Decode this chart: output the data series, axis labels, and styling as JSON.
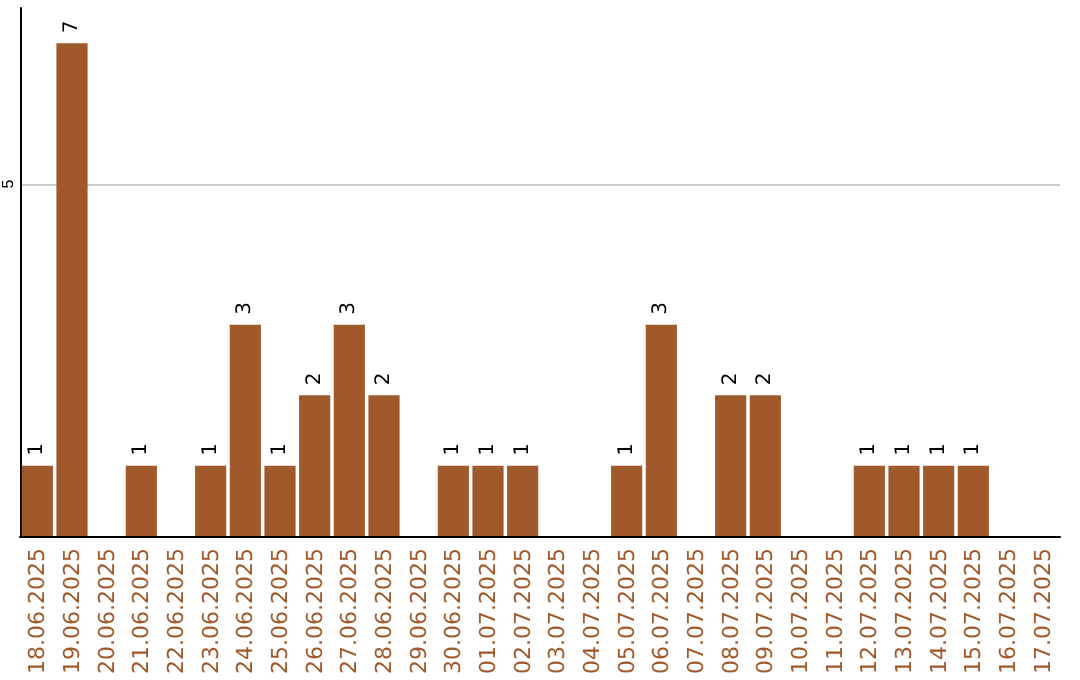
{
  "chart_data": {
    "type": "bar",
    "categories": [
      "18.06.2025",
      "19.06.2025",
      "20.06.2025",
      "21.06.2025",
      "22.06.2025",
      "23.06.2025",
      "24.06.2025",
      "25.06.2025",
      "26.06.2025",
      "27.06.2025",
      "28.06.2025",
      "29.06.2025",
      "30.06.2025",
      "01.07.2025",
      "02.07.2025",
      "03.07.2025",
      "04.07.2025",
      "05.07.2025",
      "06.07.2025",
      "07.07.2025",
      "08.07.2025",
      "09.07.2025",
      "10.07.2025",
      "11.07.2025",
      "12.07.2025",
      "13.07.2025",
      "14.07.2025",
      "15.07.2025",
      "16.07.2025",
      "17.07.2025"
    ],
    "values": [
      1,
      7,
      0,
      1,
      0,
      1,
      3,
      1,
      2,
      3,
      2,
      0,
      1,
      1,
      1,
      0,
      0,
      1,
      3,
      0,
      2,
      2,
      0,
      0,
      1,
      1,
      1,
      1,
      0,
      0
    ],
    "value_labels": [
      "1",
      "7",
      null,
      "1",
      null,
      "1",
      "3",
      "1",
      "2",
      "3",
      "2",
      null,
      "1",
      "1",
      "1",
      null,
      null,
      "1",
      "3",
      null,
      "2",
      "2",
      null,
      null,
      "1",
      "1",
      "1",
      "1",
      null,
      null
    ],
    "color": "#a0592a",
    "ylim": [
      0,
      7.5
    ],
    "yticks": [
      5
    ],
    "grid": "y"
  }
}
